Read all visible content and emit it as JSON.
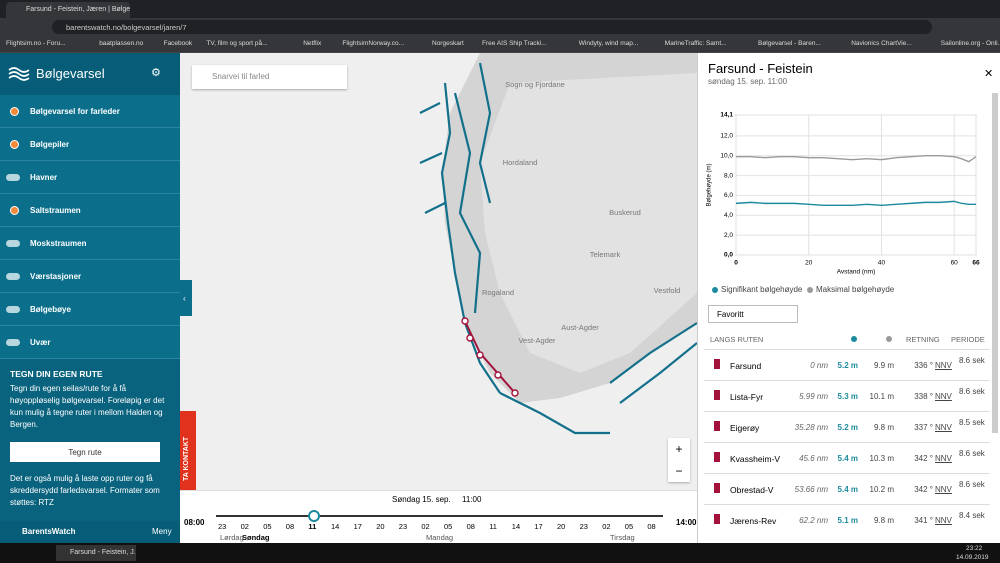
{
  "browser": {
    "tab_title": "Farsund - Feistein, Jæren | Bølgev",
    "url": "barentswatch.no/bolgevarsel/jaren/7",
    "bookmarks": [
      "Flightsim.no - Foru...",
      "baatplassen.no",
      "Facebook",
      "TV, film og sport på...",
      "Netflix",
      "FlightsimNorway.co...",
      "Norgeskart",
      "Free AIS Ship Tracki...",
      "Windyty, wind map...",
      "MarineTraffic: Samt...",
      "Bølgevarsel - Baren...",
      "Navionics ChartVie...",
      "Sailonline.org - Onli..."
    ]
  },
  "sidebar": {
    "title": "Bølgevarsel",
    "layers": [
      {
        "label": "Bølgevarsel for farleder",
        "active": true
      },
      {
        "label": "Bølgepiler",
        "active": true
      },
      {
        "label": "Havner",
        "active": false
      },
      {
        "label": "Saltstraumen",
        "active": true
      },
      {
        "label": "Moskstraumen",
        "active": false
      },
      {
        "label": "Værstasjoner",
        "active": false
      },
      {
        "label": "Bølgebøye",
        "active": false
      },
      {
        "label": "Uvær",
        "active": false
      }
    ],
    "route": {
      "heading": "TEGN DIN EGEN RUTE",
      "text": "Tegn din egen seilas/rute for å få høyoppløselig bølgevarsel. Foreløpig er det kun mulig å tegne ruter i mellom Halden og Bergen.",
      "button": "Tegn rute",
      "text2": "Det er også mulig å laste opp ruter og få skreddersydd farledsvarsel. Formater som støttes: RTZ"
    },
    "brand": "BarentsWatch",
    "menu": "Meny"
  },
  "map": {
    "search_placeholder": "Snarvei til farled",
    "labels": [
      "Sogn og Fjordane",
      "Hordaland",
      "Buskerud",
      "Telemark",
      "Rogaland",
      "Vestfold",
      "Aust-Agder",
      "Vest-Agder"
    ],
    "contact": "TA KONTAKT",
    "zoom_in": "+",
    "zoom_out": "−"
  },
  "timeline": {
    "date": "Søndag 15. sep.",
    "time": "11:00",
    "start": "08:00",
    "end": "14:00",
    "hours": [
      "23",
      "02",
      "05",
      "08",
      "11",
      "14",
      "17",
      "20",
      "23",
      "02",
      "05",
      "08",
      "11",
      "14",
      "17",
      "20",
      "23",
      "02",
      "05",
      "08"
    ],
    "current": 4,
    "days": [
      "Lørdag",
      "Søndag",
      "Mandag",
      "Tirsdag"
    ]
  },
  "panel": {
    "title": "Farsund - Feistein",
    "subtitle": "søndag 15. sep. 11:00",
    "chart": {
      "type": "line",
      "y_label": "Bølgehøyde (m)",
      "x_label": "Avstand (nm)",
      "x": [
        0,
        4,
        8,
        12,
        16,
        20,
        24,
        28,
        32,
        36,
        40,
        44,
        48,
        52,
        56,
        60,
        62,
        64,
        66
      ],
      "series": [
        {
          "name": "Signifikant bølgehøyde",
          "color": "#1b8a9c",
          "values": [
            5.2,
            5.3,
            5.2,
            5.2,
            5.2,
            5.1,
            5.0,
            5.0,
            5.0,
            5.1,
            5.0,
            5.1,
            5.2,
            5.3,
            5.3,
            5.4,
            5.2,
            5.1,
            5.1
          ]
        },
        {
          "name": "Maksimal bølgehøyde",
          "color": "#9a9a9a",
          "values": [
            9.9,
            9.9,
            9.8,
            9.9,
            9.9,
            9.8,
            9.8,
            9.7,
            9.6,
            9.7,
            9.6,
            9.8,
            9.9,
            10.0,
            10.0,
            9.9,
            9.7,
            9.4,
            9.9
          ]
        }
      ],
      "xlim": [
        0,
        66
      ],
      "xticks": [
        0,
        20,
        40,
        60,
        66
      ],
      "ylim": [
        0,
        14.1
      ],
      "yticks": [
        {
          "value": 0,
          "label": "0,0"
        },
        {
          "value": 2,
          "label": "2,0"
        },
        {
          "value": 4,
          "label": "4,0"
        },
        {
          "value": 6,
          "label": "6,0"
        },
        {
          "value": 8,
          "label": "8,0"
        },
        {
          "value": 10,
          "label": "10,0"
        },
        {
          "value": 12,
          "label": "12,0"
        },
        {
          "value": 14.1,
          "label": "14,1"
        }
      ],
      "grid": true
    },
    "favorite": "Favoritt",
    "table": {
      "columns": [
        "LANGS RUTEN",
        "RETNING",
        "PERIODE"
      ],
      "rows": [
        [
          "Farsund",
          "0 nm",
          "5.2 m",
          "9.9 m",
          "336 °",
          "NNV",
          "8.6 sek"
        ],
        [
          "Lista-Fyr",
          "5.99 nm",
          "5.3 m",
          "10.1 m",
          "338 °",
          "NNV",
          "8.6 sek"
        ],
        [
          "Eigerøy",
          "35.28 nm",
          "5.2 m",
          "9.8 m",
          "337 °",
          "NNV",
          "8.5 sek"
        ],
        [
          "Kvassheim-V",
          "45.6 nm",
          "5.4 m",
          "10.3 m",
          "342 °",
          "NNV",
          "8.6 sek"
        ],
        [
          "Obrestad-V",
          "53.66 nm",
          "5.4 m",
          "10.2 m",
          "342 °",
          "NNV",
          "8.6 sek"
        ],
        [
          "Jærens-Rev",
          "62.2 nm",
          "5.1 m",
          "9.8 m",
          "341 °",
          "NNV",
          "8.4 sek"
        ]
      ]
    }
  },
  "taskbar": {
    "task": "Farsund - Feistein, J...",
    "time": "23:22",
    "date": "14.09.2019"
  }
}
